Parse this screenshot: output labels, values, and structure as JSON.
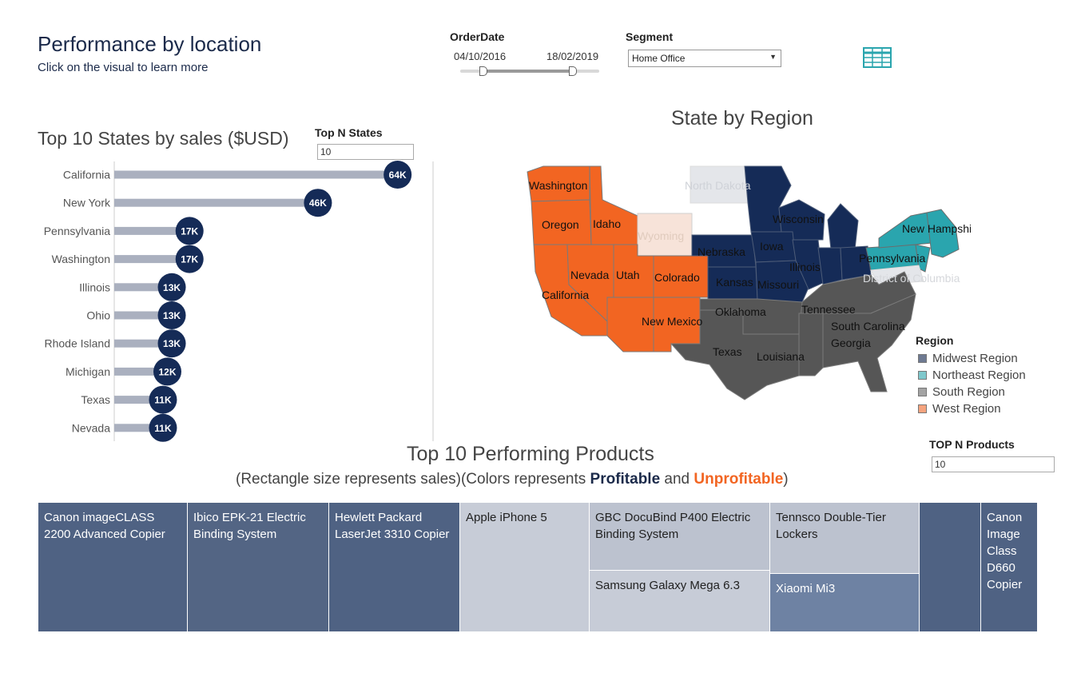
{
  "header": {
    "title": "Performance by location",
    "subtitle": "Click on the visual to learn more"
  },
  "filters": {
    "order_date_label": "OrderDate",
    "order_date_start": "04/10/2016",
    "order_date_end": "18/02/2019",
    "order_date_range_fraction": [
      0.16,
      0.8
    ],
    "segment_label": "Segment",
    "segment_value": "Home Office",
    "table_icon": "table-grid-icon"
  },
  "bar_section": {
    "title": "Top 10 States by sales ($USD)",
    "topn_label": "Top N States",
    "topn_value": "10"
  },
  "chart_data": {
    "type": "bar",
    "orientation": "horizontal",
    "categories": [
      "California",
      "New York",
      "Pennsylvania",
      "Washington",
      "Illinois",
      "Ohio",
      "Rhode Island",
      "Michigan",
      "Texas",
      "Nevada"
    ],
    "values": [
      64,
      46,
      17,
      17,
      13,
      13,
      13,
      12,
      11,
      11
    ],
    "data_labels": [
      "64K",
      "46K",
      "17K",
      "17K",
      "13K",
      "13K",
      "13K",
      "12K",
      "11K",
      "11K"
    ],
    "title": "Top 10 States by sales ($USD)",
    "xlim": [
      0,
      72
    ],
    "bar_color": "#aab0bf",
    "marker_color": "#152b57"
  },
  "map": {
    "title": "State by Region",
    "state_labels": [
      "Washington",
      "Oregon",
      "Idaho",
      "Wyoming",
      "North Dakota",
      "Wisconsin",
      "New Hampshire",
      "Iowa",
      "Nebraska",
      "Illinois",
      "Pennsylvania",
      "Nevada",
      "Utah",
      "Colorado",
      "Kansas",
      "Missouri",
      "District of Columbia",
      "California",
      "Oklahoma",
      "Tennessee",
      "New Mexico",
      "South Carolina",
      "Georgia",
      "Texas",
      "Louisiana"
    ],
    "legend_title": "Region",
    "legend": [
      {
        "label": "Midwest Region",
        "color": "#6e7a92"
      },
      {
        "label": "Northeast Region",
        "color": "#7fc8cc"
      },
      {
        "label": "South Region",
        "color": "#a3a3a3"
      },
      {
        "label": "West Region",
        "color": "#f5a37e"
      }
    ],
    "colors": {
      "midwest": "#152b57",
      "northeast": "#2aa5ae",
      "south": "#565656",
      "west": "#f26522",
      "west_light": "#f7e3d9",
      "empty": "#e4e6ea"
    }
  },
  "treemap": {
    "title": "Top 10 Performing Products",
    "subtitle_prefix": "(Rectangle size represents sales)(Colors represents ",
    "subtitle_profitable": "Profitable",
    "subtitle_and": " and ",
    "subtitle_unprofitable": "Unprofitable",
    "subtitle_suffix": ")",
    "topn_label": "TOP N Products",
    "topn_value": "10",
    "tiles": [
      {
        "label": "Canon imageCLASS 2200 Advanced Copier",
        "color": "#4f6283",
        "text": "#ffffff"
      },
      {
        "label": "Ibico EPK-21 Electric Binding System",
        "color": "#536584",
        "text": "#ffffff"
      },
      {
        "label": "Hewlett Packard LaserJet 3310 Copier",
        "color": "#4f6283",
        "text": "#ffffff"
      },
      {
        "label": "Apple iPhone 5",
        "color": "#c7ccd7",
        "text": "#222222"
      },
      {
        "label": "GBC DocuBind P400 Electric Binding System",
        "color": "#bcc2cf",
        "text": "#222222"
      },
      {
        "label": "Samsung Galaxy Mega 6.3",
        "color": "#c7ccd7",
        "text": "#222222"
      },
      {
        "label": "Tennsco Double-Tier Lockers",
        "color": "#bcc2cf",
        "text": "#222222"
      },
      {
        "label": "Xiaomi Mi3",
        "color": "#6e82a3",
        "text": "#ffffff"
      },
      {
        "label": "",
        "color": "#4f6283",
        "text": "#ffffff"
      },
      {
        "label": "Canon Image Class D660 Copier",
        "color": "#4f6283",
        "text": "#ffffff"
      }
    ]
  }
}
